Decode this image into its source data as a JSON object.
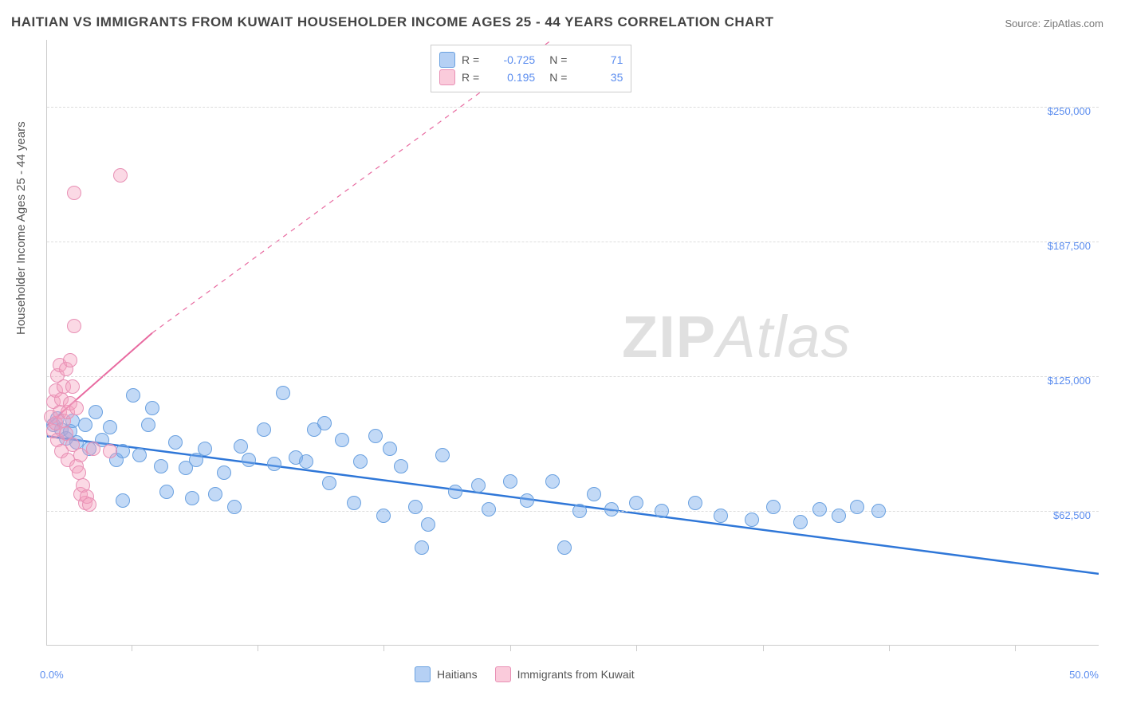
{
  "title": "HAITIAN VS IMMIGRANTS FROM KUWAIT HOUSEHOLDER INCOME AGES 25 - 44 YEARS CORRELATION CHART",
  "source_label": "Source: ",
  "source_value": "ZipAtlas.com",
  "watermark_zip": "ZIP",
  "watermark_atlas": "Atlas",
  "chart": {
    "type": "scatter",
    "background_color": "#ffffff",
    "grid_color": "#dddddd",
    "axis_color": "#cccccc",
    "x": {
      "min": 0,
      "max": 50,
      "unit": "%",
      "start_label": "0.0%",
      "end_label": "50.0%",
      "tick_positions_pct": [
        8,
        20,
        32,
        44,
        56,
        68,
        80,
        92
      ]
    },
    "y": {
      "min": 0,
      "max": 281250,
      "title": "Householder Income Ages 25 - 44 years",
      "gridlines": [
        {
          "value": 62500,
          "label": "$62,500"
        },
        {
          "value": 125000,
          "label": "$125,000"
        },
        {
          "value": 187500,
          "label": "$187,500"
        },
        {
          "value": 250000,
          "label": "$250,000"
        }
      ]
    },
    "legend_top": {
      "r_label": "R =",
      "n_label": "N =",
      "rows": [
        {
          "swatch": "blue",
          "r": "-0.725",
          "n": "71"
        },
        {
          "swatch": "pink",
          "r": "0.195",
          "n": "35"
        }
      ]
    },
    "legend_bottom": [
      {
        "swatch": "blue",
        "label": "Haitians"
      },
      {
        "swatch": "pink",
        "label": "Immigrants from Kuwait"
      }
    ],
    "series": [
      {
        "name": "haitians",
        "color_fill": "rgba(120,170,235,0.45)",
        "color_stroke": "#6aa1e0",
        "trend": {
          "x1": 0,
          "y1": 97000,
          "x2": 50,
          "y2": 33000,
          "extend": false,
          "color": "#2f77d8",
          "width": 2.5
        },
        "points": [
          [
            0.3,
            102000
          ],
          [
            0.5,
            105000
          ],
          [
            0.7,
            100000
          ],
          [
            0.9,
            96000
          ],
          [
            1.1,
            99000
          ],
          [
            1.2,
            104000
          ],
          [
            1.4,
            94000
          ],
          [
            1.8,
            102000
          ],
          [
            2.0,
            91000
          ],
          [
            2.3,
            108000
          ],
          [
            2.6,
            95000
          ],
          [
            3.0,
            101000
          ],
          [
            3.3,
            86000
          ],
          [
            3.6,
            90000
          ],
          [
            3.6,
            67000
          ],
          [
            4.1,
            116000
          ],
          [
            4.4,
            88000
          ],
          [
            4.8,
            102000
          ],
          [
            5.0,
            110000
          ],
          [
            5.4,
            83000
          ],
          [
            5.7,
            71000
          ],
          [
            6.1,
            94000
          ],
          [
            6.6,
            82000
          ],
          [
            6.9,
            68000
          ],
          [
            7.1,
            86000
          ],
          [
            7.5,
            91000
          ],
          [
            8.0,
            70000
          ],
          [
            8.4,
            80000
          ],
          [
            8.9,
            64000
          ],
          [
            9.2,
            92000
          ],
          [
            9.6,
            86000
          ],
          [
            10.3,
            100000
          ],
          [
            10.8,
            84000
          ],
          [
            11.2,
            117000
          ],
          [
            11.8,
            87000
          ],
          [
            12.3,
            85000
          ],
          [
            12.7,
            100000
          ],
          [
            13.2,
            103000
          ],
          [
            13.4,
            75000
          ],
          [
            14.0,
            95000
          ],
          [
            14.6,
            66000
          ],
          [
            14.9,
            85000
          ],
          [
            15.6,
            97000
          ],
          [
            16.0,
            60000
          ],
          [
            16.3,
            91000
          ],
          [
            16.8,
            83000
          ],
          [
            17.5,
            64000
          ],
          [
            17.8,
            45000
          ],
          [
            18.1,
            56000
          ],
          [
            18.8,
            88000
          ],
          [
            19.4,
            71000
          ],
          [
            20.5,
            74000
          ],
          [
            21.0,
            63000
          ],
          [
            22.0,
            76000
          ],
          [
            22.8,
            67000
          ],
          [
            24.0,
            76000
          ],
          [
            24.6,
            45000
          ],
          [
            25.3,
            62000
          ],
          [
            26.0,
            70000
          ],
          [
            26.8,
            63000
          ],
          [
            28.0,
            66000
          ],
          [
            29.2,
            62000
          ],
          [
            30.8,
            66000
          ],
          [
            32.0,
            60000
          ],
          [
            33.5,
            58000
          ],
          [
            34.5,
            64000
          ],
          [
            35.8,
            57000
          ],
          [
            36.7,
            63000
          ],
          [
            37.6,
            60000
          ],
          [
            38.5,
            64000
          ],
          [
            39.5,
            62000
          ]
        ]
      },
      {
        "name": "kuwait",
        "color_fill": "rgba(245,160,190,0.40)",
        "color_stroke": "#e890b5",
        "trend": {
          "x1": 0,
          "y1": 102000,
          "x2": 5,
          "y2": 145000,
          "extend": true,
          "extend_x2": 24,
          "extend_y2": 310000,
          "color": "#e86aa0",
          "width": 2
        },
        "points": [
          [
            0.2,
            106000
          ],
          [
            0.3,
            113000
          ],
          [
            0.3,
            99000
          ],
          [
            0.4,
            118000
          ],
          [
            0.4,
            103000
          ],
          [
            0.5,
            125000
          ],
          [
            0.5,
            95000
          ],
          [
            0.6,
            108000
          ],
          [
            0.6,
            130000
          ],
          [
            0.7,
            114000
          ],
          [
            0.7,
            90000
          ],
          [
            0.8,
            120000
          ],
          [
            0.8,
            104000
          ],
          [
            0.9,
            98000
          ],
          [
            0.9,
            128000
          ],
          [
            1.0,
            108000
          ],
          [
            1.0,
            86000
          ],
          [
            1.1,
            112000
          ],
          [
            1.1,
            132000
          ],
          [
            1.2,
            93000
          ],
          [
            1.2,
            120000
          ],
          [
            1.3,
            148000
          ],
          [
            1.4,
            83000
          ],
          [
            1.4,
            110000
          ],
          [
            1.5,
            80000
          ],
          [
            1.6,
            88000
          ],
          [
            1.6,
            70000
          ],
          [
            1.7,
            74000
          ],
          [
            1.8,
            66000
          ],
          [
            1.9,
            69000
          ],
          [
            2.0,
            65000
          ],
          [
            2.2,
            91000
          ],
          [
            1.3,
            210000
          ],
          [
            3.5,
            218000
          ],
          [
            3.0,
            90000
          ]
        ]
      }
    ]
  }
}
